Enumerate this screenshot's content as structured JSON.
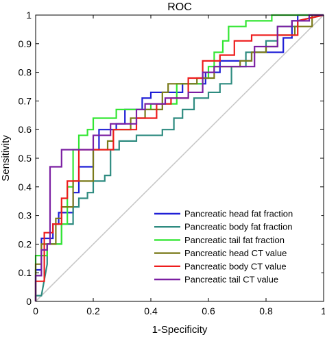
{
  "chart_data": {
    "type": "line",
    "title": "ROC",
    "xlabel": "1-Specificity",
    "ylabel": "Sensitivity",
    "xlim": [
      0,
      1
    ],
    "ylim": [
      0,
      1
    ],
    "xticks": [
      "0",
      "0.2",
      "0.4",
      "0.6",
      "0.8",
      "1"
    ],
    "yticks": [
      "0",
      "0.1",
      "0.2",
      "0.3",
      "0.4",
      "0.5",
      "0.6",
      "0.7",
      "0.8",
      "0.9",
      "1"
    ],
    "legend_position": "bottom-right",
    "diagonal_color": "#c8c8c8",
    "series": [
      {
        "name": "Pancreatic head fat fraction",
        "color": "#1f1fd6",
        "points": [
          [
            0,
            0
          ],
          [
            0,
            0.11
          ],
          [
            0.02,
            0.11
          ],
          [
            0.02,
            0.22
          ],
          [
            0.06,
            0.22
          ],
          [
            0.06,
            0.27
          ],
          [
            0.08,
            0.27
          ],
          [
            0.08,
            0.31
          ],
          [
            0.13,
            0.31
          ],
          [
            0.13,
            0.38
          ],
          [
            0.15,
            0.38
          ],
          [
            0.15,
            0.47
          ],
          [
            0.2,
            0.47
          ],
          [
            0.2,
            0.53
          ],
          [
            0.22,
            0.53
          ],
          [
            0.22,
            0.6
          ],
          [
            0.28,
            0.6
          ],
          [
            0.28,
            0.62
          ],
          [
            0.31,
            0.62
          ],
          [
            0.31,
            0.67
          ],
          [
            0.37,
            0.67
          ],
          [
            0.37,
            0.71
          ],
          [
            0.4,
            0.71
          ],
          [
            0.4,
            0.73
          ],
          [
            0.51,
            0.73
          ],
          [
            0.51,
            0.76
          ],
          [
            0.59,
            0.76
          ],
          [
            0.59,
            0.8
          ],
          [
            0.64,
            0.8
          ],
          [
            0.64,
            0.84
          ],
          [
            0.75,
            0.84
          ],
          [
            0.75,
            0.87
          ],
          [
            0.86,
            0.87
          ],
          [
            0.86,
            0.92
          ],
          [
            0.89,
            0.92
          ],
          [
            0.89,
            0.98
          ],
          [
            0.91,
            0.98
          ],
          [
            0.91,
            1
          ],
          [
            1,
            1
          ]
        ]
      },
      {
        "name": "Pancreatic body fat fraction",
        "color": "#2e8b80",
        "points": [
          [
            0,
            0
          ],
          [
            0,
            0.02
          ],
          [
            0.02,
            0.02
          ],
          [
            0.04,
            0.13
          ],
          [
            0.04,
            0.2
          ],
          [
            0.09,
            0.2
          ],
          [
            0.09,
            0.27
          ],
          [
            0.13,
            0.27
          ],
          [
            0.13,
            0.33
          ],
          [
            0.15,
            0.33
          ],
          [
            0.15,
            0.36
          ],
          [
            0.18,
            0.36
          ],
          [
            0.18,
            0.38
          ],
          [
            0.2,
            0.38
          ],
          [
            0.2,
            0.42
          ],
          [
            0.24,
            0.42
          ],
          [
            0.24,
            0.44
          ],
          [
            0.26,
            0.44
          ],
          [
            0.26,
            0.53
          ],
          [
            0.29,
            0.53
          ],
          [
            0.29,
            0.56
          ],
          [
            0.35,
            0.56
          ],
          [
            0.35,
            0.58
          ],
          [
            0.44,
            0.58
          ],
          [
            0.44,
            0.6
          ],
          [
            0.48,
            0.6
          ],
          [
            0.48,
            0.64
          ],
          [
            0.51,
            0.64
          ],
          [
            0.51,
            0.67
          ],
          [
            0.55,
            0.67
          ],
          [
            0.55,
            0.71
          ],
          [
            0.6,
            0.71
          ],
          [
            0.6,
            0.73
          ],
          [
            0.64,
            0.73
          ],
          [
            0.64,
            0.76
          ],
          [
            0.68,
            0.76
          ],
          [
            0.68,
            0.82
          ],
          [
            0.73,
            0.82
          ],
          [
            0.73,
            0.87
          ],
          [
            0.8,
            0.87
          ],
          [
            0.8,
            0.91
          ],
          [
            0.84,
            0.91
          ],
          [
            0.84,
            0.96
          ],
          [
            0.91,
            0.96
          ],
          [
            0.91,
            0.98
          ],
          [
            1,
            1
          ]
        ]
      },
      {
        "name": "Pancreatic tail fat fraction",
        "color": "#33e633",
        "points": [
          [
            0,
            0
          ],
          [
            0,
            0.16
          ],
          [
            0.04,
            0.16
          ],
          [
            0.04,
            0.2
          ],
          [
            0.09,
            0.2
          ],
          [
            0.09,
            0.27
          ],
          [
            0.11,
            0.27
          ],
          [
            0.11,
            0.4
          ],
          [
            0.13,
            0.4
          ],
          [
            0.13,
            0.53
          ],
          [
            0.15,
            0.53
          ],
          [
            0.15,
            0.58
          ],
          [
            0.18,
            0.58
          ],
          [
            0.18,
            0.6
          ],
          [
            0.2,
            0.6
          ],
          [
            0.2,
            0.64
          ],
          [
            0.28,
            0.64
          ],
          [
            0.28,
            0.67
          ],
          [
            0.4,
            0.67
          ],
          [
            0.4,
            0.69
          ],
          [
            0.49,
            0.69
          ],
          [
            0.49,
            0.76
          ],
          [
            0.58,
            0.76
          ],
          [
            0.58,
            0.78
          ],
          [
            0.6,
            0.78
          ],
          [
            0.6,
            0.82
          ],
          [
            0.62,
            0.82
          ],
          [
            0.62,
            0.87
          ],
          [
            0.65,
            0.87
          ],
          [
            0.65,
            0.91
          ],
          [
            0.67,
            0.91
          ],
          [
            0.67,
            0.96
          ],
          [
            0.73,
            0.96
          ],
          [
            0.73,
            0.98
          ],
          [
            0.82,
            0.98
          ],
          [
            0.82,
            1
          ],
          [
            1,
            1
          ]
        ]
      },
      {
        "name": "Pancreatic head CT value",
        "color": "#7a7a1a",
        "points": [
          [
            0,
            0
          ],
          [
            0,
            0.13
          ],
          [
            0.02,
            0.13
          ],
          [
            0.02,
            0.2
          ],
          [
            0.07,
            0.2
          ],
          [
            0.07,
            0.29
          ],
          [
            0.09,
            0.29
          ],
          [
            0.09,
            0.33
          ],
          [
            0.13,
            0.33
          ],
          [
            0.13,
            0.42
          ],
          [
            0.2,
            0.42
          ],
          [
            0.2,
            0.53
          ],
          [
            0.25,
            0.53
          ],
          [
            0.25,
            0.56
          ],
          [
            0.27,
            0.56
          ],
          [
            0.27,
            0.6
          ],
          [
            0.33,
            0.6
          ],
          [
            0.33,
            0.64
          ],
          [
            0.38,
            0.64
          ],
          [
            0.38,
            0.67
          ],
          [
            0.44,
            0.67
          ],
          [
            0.44,
            0.73
          ],
          [
            0.46,
            0.73
          ],
          [
            0.46,
            0.76
          ],
          [
            0.56,
            0.76
          ],
          [
            0.56,
            0.78
          ],
          [
            0.62,
            0.78
          ],
          [
            0.62,
            0.82
          ],
          [
            0.71,
            0.82
          ],
          [
            0.71,
            0.84
          ],
          [
            0.75,
            0.84
          ],
          [
            0.75,
            0.87
          ],
          [
            0.8,
            0.87
          ],
          [
            0.8,
            0.89
          ],
          [
            0.84,
            0.89
          ],
          [
            0.84,
            0.93
          ],
          [
            0.9,
            0.93
          ],
          [
            0.9,
            0.96
          ],
          [
            0.96,
            0.96
          ],
          [
            0.96,
            1
          ],
          [
            1,
            1
          ]
        ]
      },
      {
        "name": "Pancreatic body CT value",
        "color": "#ee1c1c",
        "points": [
          [
            0,
            0
          ],
          [
            0,
            0.07
          ],
          [
            0.03,
            0.07
          ],
          [
            0.03,
            0.24
          ],
          [
            0.06,
            0.24
          ],
          [
            0.06,
            0.27
          ],
          [
            0.09,
            0.27
          ],
          [
            0.09,
            0.36
          ],
          [
            0.11,
            0.36
          ],
          [
            0.11,
            0.42
          ],
          [
            0.15,
            0.42
          ],
          [
            0.15,
            0.53
          ],
          [
            0.27,
            0.53
          ],
          [
            0.27,
            0.6
          ],
          [
            0.35,
            0.6
          ],
          [
            0.35,
            0.64
          ],
          [
            0.42,
            0.64
          ],
          [
            0.42,
            0.69
          ],
          [
            0.47,
            0.69
          ],
          [
            0.47,
            0.71
          ],
          [
            0.53,
            0.71
          ],
          [
            0.53,
            0.78
          ],
          [
            0.58,
            0.78
          ],
          [
            0.58,
            0.84
          ],
          [
            0.64,
            0.84
          ],
          [
            0.64,
            0.86
          ],
          [
            0.69,
            0.86
          ],
          [
            0.69,
            0.91
          ],
          [
            0.75,
            0.91
          ],
          [
            0.75,
            0.93
          ],
          [
            0.91,
            0.93
          ],
          [
            0.91,
            0.98
          ],
          [
            1,
            1
          ]
        ]
      },
      {
        "name": "Pancreatic tail CT value",
        "color": "#7b1fa2",
        "points": [
          [
            0,
            0
          ],
          [
            0,
            0.09
          ],
          [
            0.02,
            0.09
          ],
          [
            0.02,
            0.18
          ],
          [
            0.04,
            0.18
          ],
          [
            0.04,
            0.2
          ],
          [
            0.05,
            0.2
          ],
          [
            0.05,
            0.47
          ],
          [
            0.09,
            0.47
          ],
          [
            0.09,
            0.53
          ],
          [
            0.2,
            0.53
          ],
          [
            0.2,
            0.58
          ],
          [
            0.26,
            0.58
          ],
          [
            0.26,
            0.62
          ],
          [
            0.35,
            0.62
          ],
          [
            0.35,
            0.67
          ],
          [
            0.38,
            0.67
          ],
          [
            0.38,
            0.69
          ],
          [
            0.45,
            0.69
          ],
          [
            0.45,
            0.71
          ],
          [
            0.53,
            0.71
          ],
          [
            0.53,
            0.73
          ],
          [
            0.58,
            0.73
          ],
          [
            0.58,
            0.8
          ],
          [
            0.62,
            0.8
          ],
          [
            0.62,
            0.82
          ],
          [
            0.76,
            0.82
          ],
          [
            0.76,
            0.89
          ],
          [
            0.84,
            0.89
          ],
          [
            0.84,
            0.96
          ],
          [
            0.89,
            0.96
          ],
          [
            0.89,
            0.98
          ],
          [
            0.95,
            0.98
          ],
          [
            0.95,
            1
          ],
          [
            1,
            1
          ]
        ]
      }
    ]
  }
}
